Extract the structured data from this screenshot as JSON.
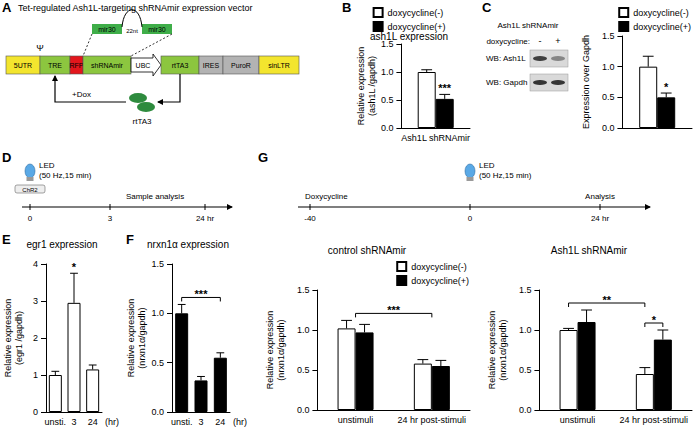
{
  "chart_data": [
    {
      "panel": "B",
      "type": "bar",
      "title": "ash1L expression",
      "ylabel": "Relative expression\n(ash1L /gapdh)",
      "categories": [
        "Ash1L shRNAmir"
      ],
      "ylim": [
        0,
        1.5
      ],
      "yticks": [
        {
          "value": 0,
          "label": "0.0"
        },
        {
          "value": 0.5,
          "label": "0.5"
        },
        {
          "value": 1,
          "label": "1.0"
        },
        {
          "value": 1.5,
          "label": "1.5"
        }
      ],
      "legend": "top",
      "series": [
        {
          "name": "doxycycline(-)",
          "color": "#ffffff",
          "values": [
            1.0
          ],
          "errors": [
            0.04
          ]
        },
        {
          "name": "doxycycline(+)",
          "color": "#000000",
          "values": [
            0.52
          ],
          "errors": [
            0.08
          ]
        }
      ],
      "annotations": [
        {
          "text": "***",
          "category": "Ash1L shRNAmir",
          "series": "doxycycline(+)"
        }
      ]
    },
    {
      "panel": "C",
      "type": "bar",
      "ylabel": "Expression over Gapdh",
      "categories": [
        null
      ],
      "ylim": [
        0,
        1.5
      ],
      "yticks": [
        {
          "value": 0,
          "label": "0.0"
        },
        {
          "value": 0.5,
          "label": "0.5"
        },
        {
          "value": 1,
          "label": "1.0"
        },
        {
          "value": 1.5,
          "label": "1.5"
        }
      ],
      "legend": "top-right",
      "series": [
        {
          "name": "doxycycline(-)",
          "color": "#ffffff",
          "values": [
            1.0
          ],
          "errors": [
            0.17
          ]
        },
        {
          "name": "doxycycline(+)",
          "color": "#000000",
          "values": [
            0.5
          ],
          "errors": [
            0.07
          ]
        }
      ],
      "annotations": [
        {
          "text": "*",
          "category": null,
          "series": "doxycycline(+)"
        }
      ]
    },
    {
      "panel": "E",
      "type": "bar",
      "title": "egr1 expression",
      "ylabel": "Relative expression\n(egr1 /gapdh)",
      "xlabel": "(hr)",
      "categories": [
        "unsti.",
        "3",
        "24"
      ],
      "ylim": [
        0,
        4
      ],
      "yticks": [
        0,
        1,
        2,
        3,
        4
      ],
      "color": "#ffffff",
      "values": [
        1.0,
        2.95,
        1.15
      ],
      "errors": [
        0.1,
        0.8,
        0.12
      ],
      "annotations": [
        {
          "text": "*",
          "category": "3"
        }
      ]
    },
    {
      "panel": "F",
      "type": "bar",
      "title": "nrxn1α expression",
      "ylabel": "Relative expression\n(nrxn1α/gapdh)",
      "xlabel": "(hr)",
      "categories": [
        "unsti.",
        "3",
        "24"
      ],
      "ylim": [
        0,
        1.5
      ],
      "yticks": [
        {
          "value": 0,
          "label": "0.0"
        },
        {
          "value": 0.5,
          "label": "0.5"
        },
        {
          "value": 1,
          "label": "1.0"
        },
        {
          "value": 1.5,
          "label": "1.5"
        }
      ],
      "color": "#000000",
      "values": [
        1.0,
        0.32,
        0.55
      ],
      "errors": [
        0.09,
        0.04,
        0.05
      ],
      "annotations": [
        {
          "text": "***",
          "from": {
            "category": "unsti."
          },
          "to": {
            "category": "24"
          }
        }
      ]
    },
    {
      "type": "bar",
      "title": "control shRNAmir",
      "ylabel": "Relative expression\n(nrxn1α/gapdh)",
      "categories": [
        "unstimuli",
        "24 hr post-stimuli"
      ],
      "ylim": [
        0,
        1.5
      ],
      "yticks": [
        {
          "value": 0,
          "label": "0.0"
        },
        {
          "value": 0.5,
          "label": "0.5"
        },
        {
          "value": 1,
          "label": "1.0"
        },
        {
          "value": 1.5,
          "label": "1.5"
        }
      ],
      "legend": "top-right",
      "series": [
        {
          "name": "doxycycline(-)",
          "color": "#ffffff",
          "values": [
            1.02,
            0.58
          ],
          "errors": [
            0.1,
            0.05
          ]
        },
        {
          "name": "doxycycline(+)",
          "color": "#000000",
          "values": [
            0.97,
            0.55
          ],
          "errors": [
            0.1,
            0.07
          ]
        }
      ],
      "annotations": [
        {
          "text": "***",
          "from": {
            "category": "unstimuli"
          },
          "to": {
            "category": "24 hr post-stimuli"
          }
        }
      ]
    },
    {
      "type": "bar",
      "title": "Ash1L shRNAmir",
      "ylabel": "Relative expression\n(nrxn1α/gapdh)",
      "categories": [
        "unstimuli",
        "24 hr post-stimuli"
      ],
      "ylim": [
        0,
        1.5
      ],
      "yticks": [
        {
          "value": 0,
          "label": "0.0"
        },
        {
          "value": 0.5,
          "label": "0.5"
        },
        {
          "value": 1,
          "label": "1.0"
        },
        {
          "value": 1.5,
          "label": "1.5"
        }
      ],
      "series": [
        {
          "name": "doxycycline(-)",
          "color": "#ffffff",
          "values": [
            1.0,
            0.45
          ],
          "errors": [
            0.02,
            0.08
          ]
        },
        {
          "name": "doxycycline(+)",
          "color": "#000000",
          "values": [
            1.1,
            0.88
          ],
          "errors": [
            0.15,
            0.12
          ]
        }
      ],
      "annotations": [
        {
          "text": "**",
          "from": {
            "category": "unstimuli",
            "series": "doxycycline(-)"
          },
          "to": {
            "category": "24 hr post-stimuli",
            "series": "doxycycline(-)"
          }
        },
        {
          "text": "*",
          "from": {
            "category": "24 hr post-stimuli",
            "series": "doxycycline(-)"
          },
          "to": {
            "category": "24 hr post-stimuli",
            "series": "doxycycline(+)"
          }
        }
      ]
    }
  ],
  "vector_diagram": {
    "panel": "A",
    "title": "Tet-regulated Ash1L-targeting shRNAmir expression vector",
    "packaging_signal": "Ψ",
    "elements": [
      {
        "label": "5UTR",
        "color": "#f3e52e"
      },
      {
        "label": "TRE",
        "color": "#8cc63f"
      },
      {
        "label": "RFP",
        "color": "#e3161c"
      },
      {
        "label": "shRNAmir",
        "color": "#8cc63f"
      },
      {
        "label": "UBC",
        "color": "#ffffff",
        "shape": "arrow"
      },
      {
        "label": "rtTA3",
        "color": "#8cc63f"
      },
      {
        "label": "IRES",
        "color": "#b3b3b3"
      },
      {
        "label": "PuroR",
        "color": "#b3b3b3"
      },
      {
        "label": "sinLTR",
        "color": "#f3e52e"
      }
    ],
    "hairpin": {
      "arms": [
        "mir30",
        "mir30"
      ],
      "loop": "22nt",
      "color": "#3fae49"
    },
    "inducer": "+Dox",
    "protein": {
      "label": "rtTA3",
      "color": "#2e8b3e"
    }
  },
  "western_blot": {
    "header": "Ash1L shRNAmir",
    "lane_title": "doxycycline:",
    "lanes": [
      "-",
      "+"
    ],
    "rows": [
      "WB: Ash1L",
      "WB: Gapdh"
    ]
  },
  "timelines": [
    {
      "panel": "D",
      "stimulus": "LED\n(50 Hz,15 min)",
      "device": "ChR2",
      "ticks": [
        "0",
        "3",
        "24 hr"
      ],
      "end_label": "Sample analysis"
    },
    {
      "panel": "G",
      "start_label": "Doxycycline",
      "stimulus": "LED\n(50 Hz,15 min)",
      "ticks": [
        "-40",
        "0",
        "24 hr"
      ],
      "end_label": "Analysis"
    }
  ]
}
